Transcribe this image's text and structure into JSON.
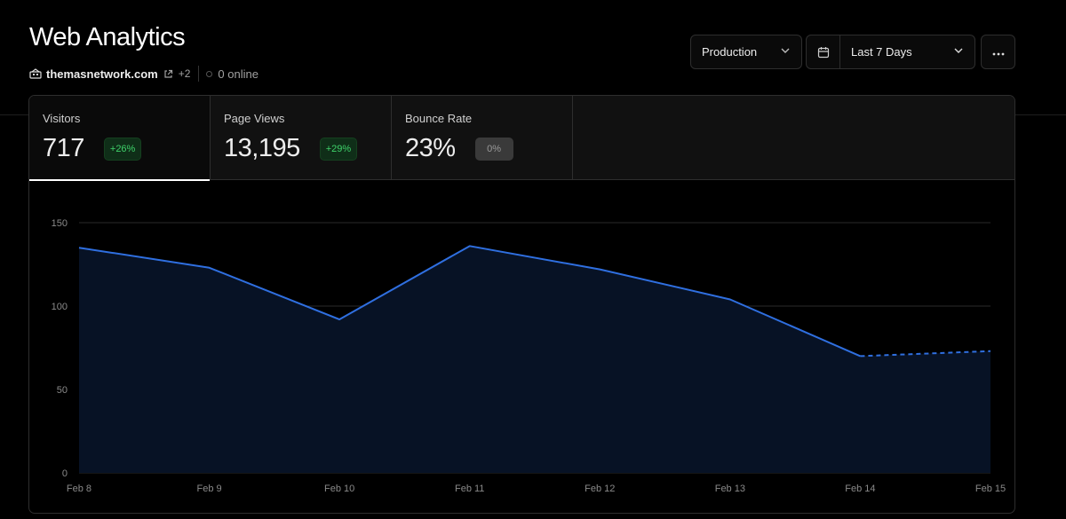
{
  "header": {
    "title": "Web Analytics",
    "site": "themasnetwork.com",
    "extra_sites": "+2",
    "online": "0 online"
  },
  "controls": {
    "environment": "Production",
    "date_range": "Last 7 Days"
  },
  "icons": {
    "site_logo": "site-logo-icon",
    "external": "external-link-icon",
    "calendar": "calendar-icon",
    "chevron": "chevron-down-icon",
    "more": "more-horizontal-icon"
  },
  "metrics": [
    {
      "label": "Visitors",
      "value": "717",
      "change": "+26%",
      "trend": "up"
    },
    {
      "label": "Page Views",
      "value": "13,195",
      "change": "+29%",
      "trend": "up"
    },
    {
      "label": "Bounce Rate",
      "value": "23%",
      "change": "0%",
      "trend": "flat"
    }
  ],
  "colors": {
    "line": "#2f6fe0",
    "fill": "#071225",
    "grid": "#2a2a2a",
    "positive": "#3fd26a"
  },
  "chart_data": {
    "type": "area",
    "title": "",
    "xlabel": "",
    "ylabel": "",
    "categories": [
      "Feb 8",
      "Feb 9",
      "Feb 10",
      "Feb 11",
      "Feb 12",
      "Feb 13",
      "Feb 14",
      "Feb 15"
    ],
    "series": [
      {
        "name": "Visitors",
        "values": [
          135,
          123,
          92,
          136,
          122,
          104,
          70,
          73
        ],
        "dashed_from_index": 6
      }
    ],
    "yticks": [
      0,
      50,
      100,
      150
    ],
    "ylim": [
      0,
      150
    ],
    "grid": true
  }
}
